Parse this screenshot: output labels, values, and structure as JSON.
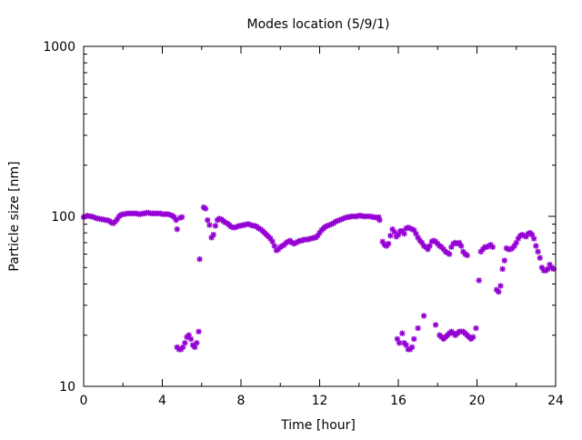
{
  "chart_data": {
    "type": "scatter",
    "title": "Modes location (5/9/1)",
    "xlabel": "Time [hour]",
    "ylabel": "Particle size [nm]",
    "xlim": [
      0,
      24
    ],
    "ylim": [
      10,
      1000
    ],
    "yscale": "log",
    "x_ticks": [
      "0",
      "4",
      "8",
      "12",
      "16",
      "20",
      "24"
    ],
    "y_ticks": [
      "10",
      "100",
      "1000"
    ],
    "grid": false,
    "marker_color": "#9400d3",
    "series": [
      {
        "points": [
          [
            0.0,
            99
          ],
          [
            0.1,
            100
          ],
          [
            0.2,
            101
          ],
          [
            0.3,
            100
          ],
          [
            0.4,
            100
          ],
          [
            0.5,
            99
          ],
          [
            0.6,
            98
          ],
          [
            0.7,
            97
          ],
          [
            0.8,
            97
          ],
          [
            0.9,
            96
          ],
          [
            1.0,
            96
          ],
          [
            1.1,
            95
          ],
          [
            1.2,
            95
          ],
          [
            1.3,
            94
          ],
          [
            1.4,
            92
          ],
          [
            1.5,
            91
          ],
          [
            1.6,
            93
          ],
          [
            1.7,
            96
          ],
          [
            1.8,
            100
          ],
          [
            1.9,
            102
          ],
          [
            2.0,
            103
          ],
          [
            2.1,
            103
          ],
          [
            2.2,
            104
          ],
          [
            2.3,
            104
          ],
          [
            2.4,
            104
          ],
          [
            2.5,
            104
          ],
          [
            2.6,
            104
          ],
          [
            2.7,
            104
          ],
          [
            2.8,
            103
          ],
          [
            2.9,
            103
          ],
          [
            3.0,
            104
          ],
          [
            3.1,
            104
          ],
          [
            3.2,
            105
          ],
          [
            3.3,
            105
          ],
          [
            3.4,
            104
          ],
          [
            3.5,
            104
          ],
          [
            3.6,
            104
          ],
          [
            3.7,
            104
          ],
          [
            3.8,
            104
          ],
          [
            3.9,
            104
          ],
          [
            4.0,
            103
          ],
          [
            4.1,
            103
          ],
          [
            4.2,
            103
          ],
          [
            4.3,
            103
          ],
          [
            4.4,
            102
          ],
          [
            4.5,
            101
          ],
          [
            4.6,
            99
          ],
          [
            4.7,
            95
          ],
          [
            4.75,
            84
          ],
          [
            4.9,
            98
          ],
          [
            5.0,
            99
          ],
          [
            4.75,
            17
          ],
          [
            4.85,
            16.5
          ],
          [
            4.95,
            16.5
          ],
          [
            5.05,
            17
          ],
          [
            5.15,
            18
          ],
          [
            5.25,
            19.5
          ],
          [
            5.35,
            20
          ],
          [
            5.45,
            19
          ],
          [
            5.55,
            17.5
          ],
          [
            5.65,
            17
          ],
          [
            5.75,
            18
          ],
          [
            5.85,
            21
          ],
          [
            5.9,
            56
          ],
          [
            6.1,
            113
          ],
          [
            6.2,
            111
          ],
          [
            6.3,
            95
          ],
          [
            6.4,
            89
          ],
          [
            6.5,
            75
          ],
          [
            6.6,
            78
          ],
          [
            6.7,
            88
          ],
          [
            6.8,
            95
          ],
          [
            6.9,
            97
          ],
          [
            7.0,
            96
          ],
          [
            7.1,
            94
          ],
          [
            7.2,
            92
          ],
          [
            7.3,
            91
          ],
          [
            7.4,
            89
          ],
          [
            7.5,
            87
          ],
          [
            7.6,
            86
          ],
          [
            7.7,
            86
          ],
          [
            7.8,
            87
          ],
          [
            7.9,
            88
          ],
          [
            8.0,
            88
          ],
          [
            8.1,
            89
          ],
          [
            8.2,
            89
          ],
          [
            8.3,
            90
          ],
          [
            8.4,
            90
          ],
          [
            8.5,
            89
          ],
          [
            8.6,
            88
          ],
          [
            8.7,
            88
          ],
          [
            8.8,
            87
          ],
          [
            8.9,
            85
          ],
          [
            9.0,
            84
          ],
          [
            9.1,
            82
          ],
          [
            9.2,
            80
          ],
          [
            9.3,
            78
          ],
          [
            9.4,
            76
          ],
          [
            9.5,
            74
          ],
          [
            9.6,
            71
          ],
          [
            9.7,
            67
          ],
          [
            9.8,
            63
          ],
          [
            9.9,
            64
          ],
          [
            10.0,
            66
          ],
          [
            10.1,
            67
          ],
          [
            10.2,
            68
          ],
          [
            10.3,
            70
          ],
          [
            10.4,
            71
          ],
          [
            10.5,
            72
          ],
          [
            10.6,
            70
          ],
          [
            10.7,
            69
          ],
          [
            10.8,
            70
          ],
          [
            10.9,
            71
          ],
          [
            11.0,
            72
          ],
          [
            11.1,
            72
          ],
          [
            11.2,
            73
          ],
          [
            11.3,
            73
          ],
          [
            11.4,
            73
          ],
          [
            11.5,
            74
          ],
          [
            11.6,
            74
          ],
          [
            11.7,
            75
          ],
          [
            11.8,
            75
          ],
          [
            11.9,
            77
          ],
          [
            12.0,
            80
          ],
          [
            12.1,
            83
          ],
          [
            12.2,
            85
          ],
          [
            12.3,
            87
          ],
          [
            12.4,
            88
          ],
          [
            12.5,
            89
          ],
          [
            12.6,
            90
          ],
          [
            12.7,
            91
          ],
          [
            12.8,
            93
          ],
          [
            12.9,
            94
          ],
          [
            13.0,
            95
          ],
          [
            13.1,
            96
          ],
          [
            13.2,
            97
          ],
          [
            13.3,
            98
          ],
          [
            13.4,
            99
          ],
          [
            13.5,
            99
          ],
          [
            13.6,
            100
          ],
          [
            13.7,
            100
          ],
          [
            13.8,
            100
          ],
          [
            13.9,
            100
          ],
          [
            14.0,
            101
          ],
          [
            14.1,
            101
          ],
          [
            14.2,
            100
          ],
          [
            14.3,
            100
          ],
          [
            14.4,
            100
          ],
          [
            14.5,
            100
          ],
          [
            14.6,
            100
          ],
          [
            14.7,
            99
          ],
          [
            14.8,
            99
          ],
          [
            14.9,
            98
          ],
          [
            15.0,
            99
          ],
          [
            15.05,
            95
          ],
          [
            15.2,
            71
          ],
          [
            15.3,
            68
          ],
          [
            15.4,
            67
          ],
          [
            15.5,
            69
          ],
          [
            15.6,
            77
          ],
          [
            15.7,
            84
          ],
          [
            15.8,
            81
          ],
          [
            15.9,
            76
          ],
          [
            16.0,
            78
          ],
          [
            16.1,
            82
          ],
          [
            16.2,
            82
          ],
          [
            16.3,
            79
          ],
          [
            16.4,
            85
          ],
          [
            16.5,
            86
          ],
          [
            16.6,
            85
          ],
          [
            16.7,
            84
          ],
          [
            16.8,
            83
          ],
          [
            16.9,
            79
          ],
          [
            17.0,
            75
          ],
          [
            17.1,
            72
          ],
          [
            17.2,
            70
          ],
          [
            17.3,
            67
          ],
          [
            17.4,
            66
          ],
          [
            17.5,
            64
          ],
          [
            17.6,
            67
          ],
          [
            17.7,
            71
          ],
          [
            17.8,
            72
          ],
          [
            17.9,
            71
          ],
          [
            18.0,
            69
          ],
          [
            18.1,
            67
          ],
          [
            18.2,
            66
          ],
          [
            18.3,
            64
          ],
          [
            18.4,
            62
          ],
          [
            18.5,
            61
          ],
          [
            18.6,
            60
          ],
          [
            18.7,
            66
          ],
          [
            18.8,
            69
          ],
          [
            18.9,
            70
          ],
          [
            19.0,
            69
          ],
          [
            19.1,
            70
          ],
          [
            19.2,
            67
          ],
          [
            19.3,
            62
          ],
          [
            19.4,
            60
          ],
          [
            19.5,
            59
          ],
          [
            15.95,
            19
          ],
          [
            16.05,
            18
          ],
          [
            16.2,
            20.5
          ],
          [
            16.3,
            18
          ],
          [
            16.4,
            17.5
          ],
          [
            16.5,
            16.5
          ],
          [
            16.6,
            16.5
          ],
          [
            16.7,
            17
          ],
          [
            16.8,
            19
          ],
          [
            17.0,
            22
          ],
          [
            17.3,
            26
          ],
          [
            17.9,
            23
          ],
          [
            18.1,
            20
          ],
          [
            18.2,
            19.5
          ],
          [
            18.3,
            19
          ],
          [
            18.4,
            19.5
          ],
          [
            18.5,
            20
          ],
          [
            18.6,
            20.5
          ],
          [
            18.7,
            21
          ],
          [
            18.8,
            20.5
          ],
          [
            18.9,
            20
          ],
          [
            19.0,
            20.5
          ],
          [
            19.1,
            21
          ],
          [
            19.2,
            21
          ],
          [
            19.3,
            21
          ],
          [
            19.4,
            20.5
          ],
          [
            19.5,
            20
          ],
          [
            19.6,
            19.5
          ],
          [
            19.7,
            19
          ],
          [
            19.8,
            19.5
          ],
          [
            19.95,
            22
          ],
          [
            20.1,
            42
          ],
          [
            20.2,
            62
          ],
          [
            20.3,
            64
          ],
          [
            20.4,
            66
          ],
          [
            20.5,
            66
          ],
          [
            20.6,
            67
          ],
          [
            20.7,
            68
          ],
          [
            20.8,
            66
          ],
          [
            21.0,
            37
          ],
          [
            21.1,
            36
          ],
          [
            21.2,
            39
          ],
          [
            21.3,
            49
          ],
          [
            21.4,
            55
          ],
          [
            21.5,
            65
          ],
          [
            21.6,
            64
          ],
          [
            21.7,
            64
          ],
          [
            21.8,
            65
          ],
          [
            21.9,
            67
          ],
          [
            22.0,
            70
          ],
          [
            22.1,
            74
          ],
          [
            22.2,
            77
          ],
          [
            22.3,
            78
          ],
          [
            22.4,
            77
          ],
          [
            22.5,
            76
          ],
          [
            22.6,
            79
          ],
          [
            22.7,
            80
          ],
          [
            22.8,
            78
          ],
          [
            22.9,
            74
          ],
          [
            23.0,
            67
          ],
          [
            23.1,
            62
          ],
          [
            23.2,
            57
          ],
          [
            23.3,
            50
          ],
          [
            23.4,
            48
          ],
          [
            23.5,
            48
          ],
          [
            23.6,
            49
          ],
          [
            23.7,
            52
          ],
          [
            23.8,
            50
          ],
          [
            23.9,
            49
          ]
        ]
      }
    ]
  }
}
